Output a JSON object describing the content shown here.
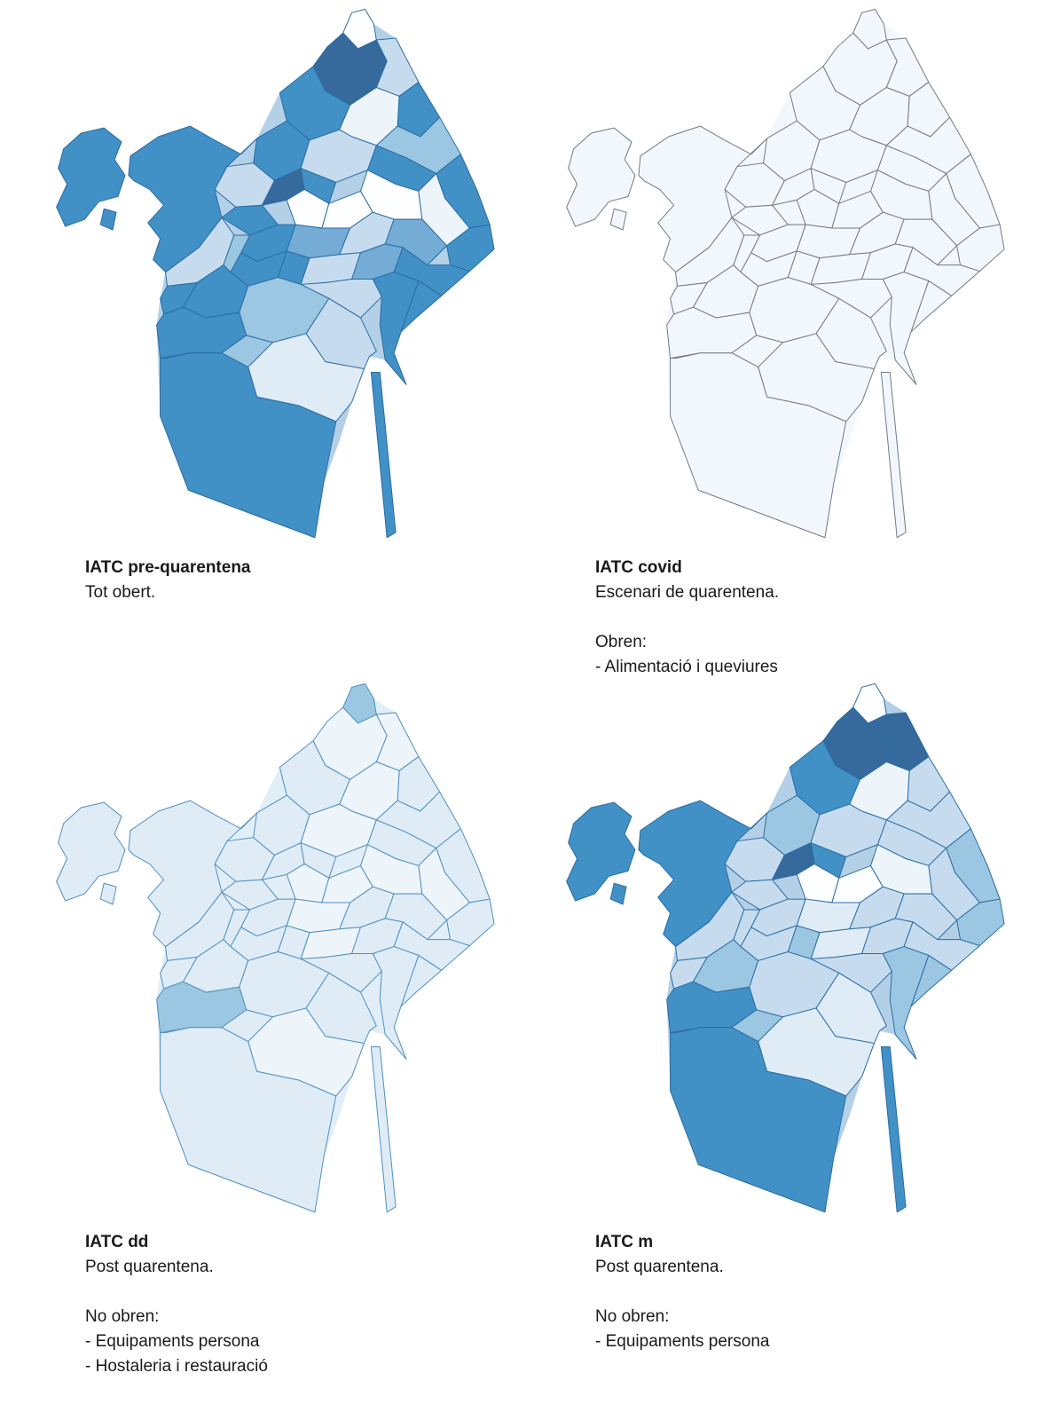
{
  "figure": {
    "description": "Four choropleth maps of Barcelona neighbourhoods (IATC scenarios)",
    "background": "#ffffff"
  },
  "palette": {
    "white": "#fdfeff",
    "pale": "#edf4fa",
    "vlight": "#dfecf6",
    "light": "#c6dcee",
    "lmed": "#9cc7e2",
    "mid": "#74acd5",
    "med": "#4190c6",
    "dark": "#36699c",
    "flat": "#f1f7fc"
  },
  "maps": [
    {
      "id": "iatc-pre-quarentena",
      "title": "IATC pre-quarentena",
      "lines": [
        "Tot obert."
      ],
      "border": "#2a6ca5",
      "base": "#b3d0e7",
      "fills": [
        "white",
        "dark",
        "light",
        "med",
        "med",
        "pale",
        "lmed",
        "med",
        "light",
        "med",
        "light",
        "dark",
        "med",
        "white",
        "white",
        "white",
        "med",
        "pale",
        "med",
        "med",
        "mid",
        "light",
        "mid",
        "med",
        "med",
        "med",
        "light",
        "mid",
        "med",
        "light",
        "med",
        "med",
        "light",
        "lmed",
        "med",
        "med",
        "lmed",
        "med",
        "light",
        "vlight",
        "lmed",
        "med",
        "med",
        "med",
        "med",
        "med"
      ]
    },
    {
      "id": "iatc-covid",
      "title": "IATC covid",
      "lines": [
        "Escenari de quarentena.",
        "",
        "Obren:",
        "- Alimentació i queviures"
      ],
      "border": "#717a82",
      "base": "#f1f7fc",
      "fills": [
        "flat",
        "flat",
        "flat",
        "flat",
        "flat",
        "flat",
        "flat",
        "flat",
        "flat",
        "flat",
        "flat",
        "flat",
        "flat",
        "flat",
        "flat",
        "flat",
        "flat",
        "flat",
        "flat",
        "flat",
        "flat",
        "flat",
        "flat",
        "flat",
        "flat",
        "flat",
        "flat",
        "flat",
        "flat",
        "flat",
        "flat",
        "flat",
        "flat",
        "flat",
        "flat",
        "flat",
        "flat",
        "flat",
        "flat",
        "flat",
        "flat",
        "flat",
        "flat",
        "flat",
        "flat",
        "flat"
      ]
    },
    {
      "id": "iatc-dd",
      "title": "IATC dd",
      "lines": [
        "Post quarentena.",
        "",
        "No obren:",
        "- Equipaments persona",
        "- Hostaleria i restauració"
      ],
      "border": "#4e8fc0",
      "base": "#e2eef7",
      "fills": [
        "lmed",
        "pale",
        "pale",
        "vlight",
        "vlight",
        "pale",
        "vlight",
        "vlight",
        "pale",
        "vlight",
        "vlight",
        "vlight",
        "vlight",
        "pale",
        "pale",
        "pale",
        "vlight",
        "pale",
        "vlight",
        "vlight",
        "pale",
        "vlight",
        "vlight",
        "vlight",
        "vlight",
        "vlight",
        "pale",
        "vlight",
        "vlight",
        "vlight",
        "vlight",
        "vlight",
        "vlight",
        "vlight",
        "vlight",
        "vlight",
        "vlight",
        "lmed",
        "vlight",
        "pale",
        "vlight",
        "vlight",
        "vlight",
        "vlight",
        "vlight",
        "vlight"
      ]
    },
    {
      "id": "iatc-m",
      "title": "IATC m",
      "lines": [
        "Post quarentena.",
        "",
        "No obren:",
        "- Equipaments persona"
      ],
      "border": "#2a6ca5",
      "base": "#b3d0e7",
      "fills": [
        "white",
        "dark",
        "dark",
        "light",
        "med",
        "pale",
        "light",
        "lmed",
        "light",
        "light",
        "light",
        "dark",
        "med",
        "white",
        "white",
        "pale",
        "lmed",
        "light",
        "light",
        "light",
        "vlight",
        "light",
        "light",
        "lmed",
        "light",
        "lmed",
        "vlight",
        "light",
        "light",
        "light",
        "lmed",
        "lmed",
        "light",
        "light",
        "lmed",
        "light",
        "light",
        "med",
        "vlight",
        "vlight",
        "lmed",
        "med",
        "med",
        "med",
        "med",
        "med"
      ]
    }
  ]
}
